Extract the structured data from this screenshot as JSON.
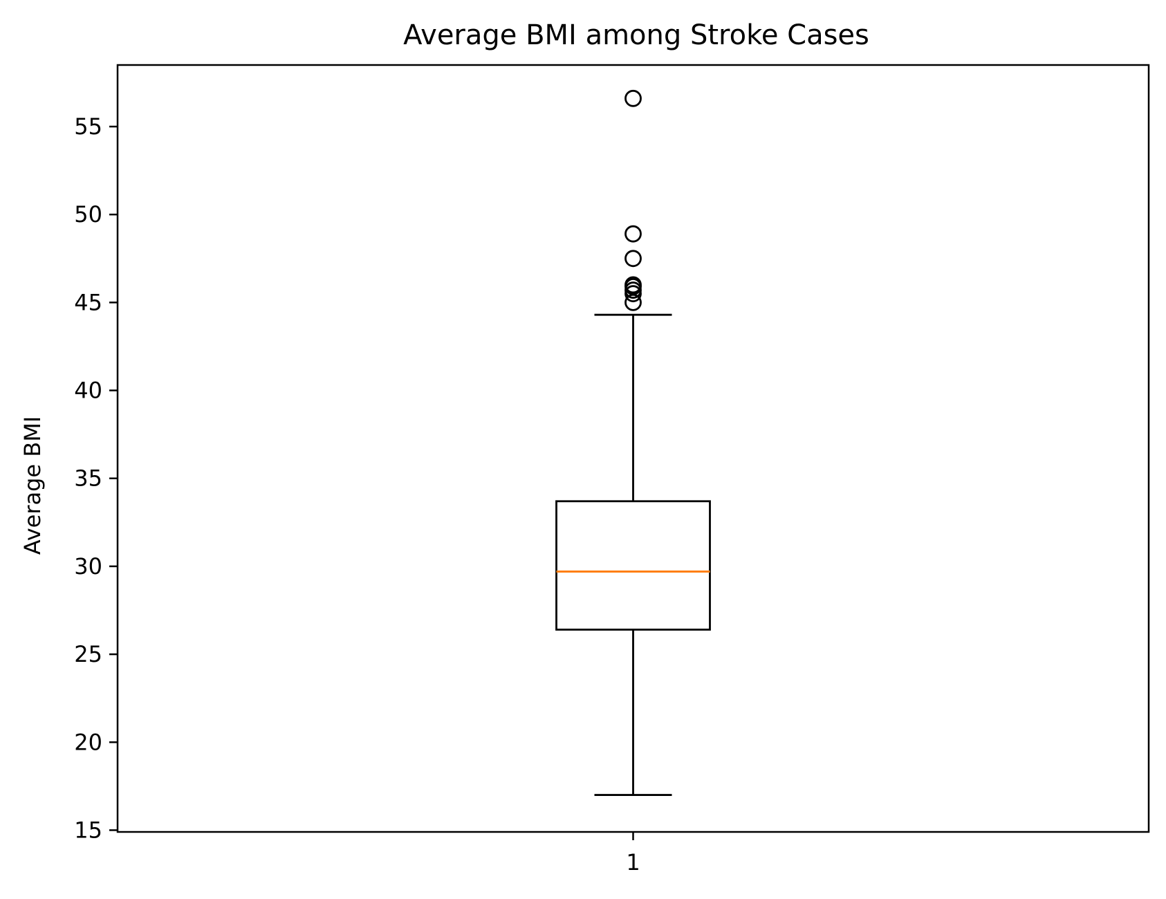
{
  "chart_data": {
    "type": "box",
    "title": "Average BMI among Stroke Cases",
    "xlabel": "",
    "ylabel": "Average BMI",
    "ylim": [
      14.9,
      58.5
    ],
    "yticks": [
      15,
      20,
      25,
      30,
      35,
      40,
      45,
      50,
      55
    ],
    "categories": [
      "1"
    ],
    "boxes": [
      {
        "category": "1",
        "whisker_low": 17.0,
        "q1": 26.4,
        "median": 29.7,
        "q3": 33.7,
        "whisker_high": 44.3,
        "outliers": [
          45.0,
          45.5,
          45.7,
          45.9,
          46.0,
          47.5,
          48.9,
          56.6
        ]
      }
    ],
    "grid": false,
    "colors": {
      "box": "#000000",
      "median": "#ff7f0e"
    }
  }
}
